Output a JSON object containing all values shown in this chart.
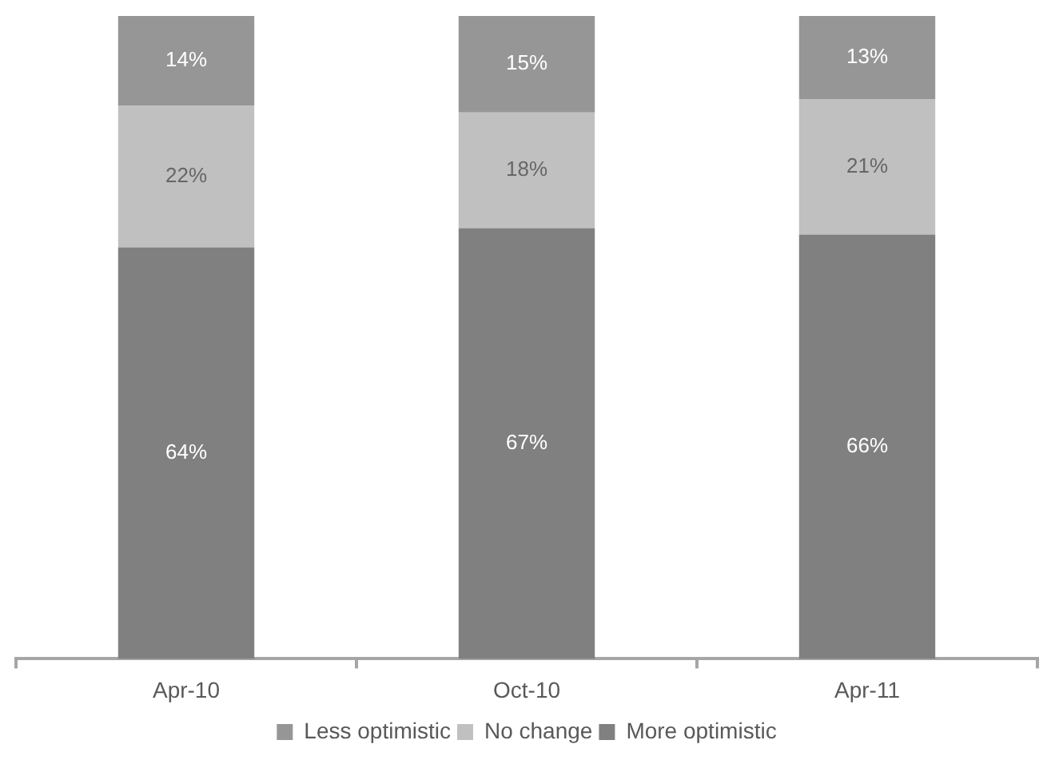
{
  "chart_data": {
    "type": "bar",
    "stacked": true,
    "categories": [
      "Apr-10",
      "Oct-10",
      "Apr-11"
    ],
    "legend": "bottom",
    "grid": false,
    "tick_labels": "x",
    "series": [
      {
        "name": "More optimistic",
        "color": "#808080",
        "values": [
          64,
          67,
          66
        ],
        "value_labels": [
          "64%",
          "67%",
          "66%"
        ]
      },
      {
        "name": "No change",
        "color": "#c0c0c0",
        "values": [
          22,
          18,
          21
        ],
        "value_labels": [
          "22%",
          "18%",
          "21%"
        ]
      },
      {
        "name": "Less optimistic",
        "color": "#969696",
        "values": [
          14,
          15,
          13
        ],
        "value_labels": [
          "14%",
          "15%",
          "13%"
        ]
      }
    ]
  }
}
